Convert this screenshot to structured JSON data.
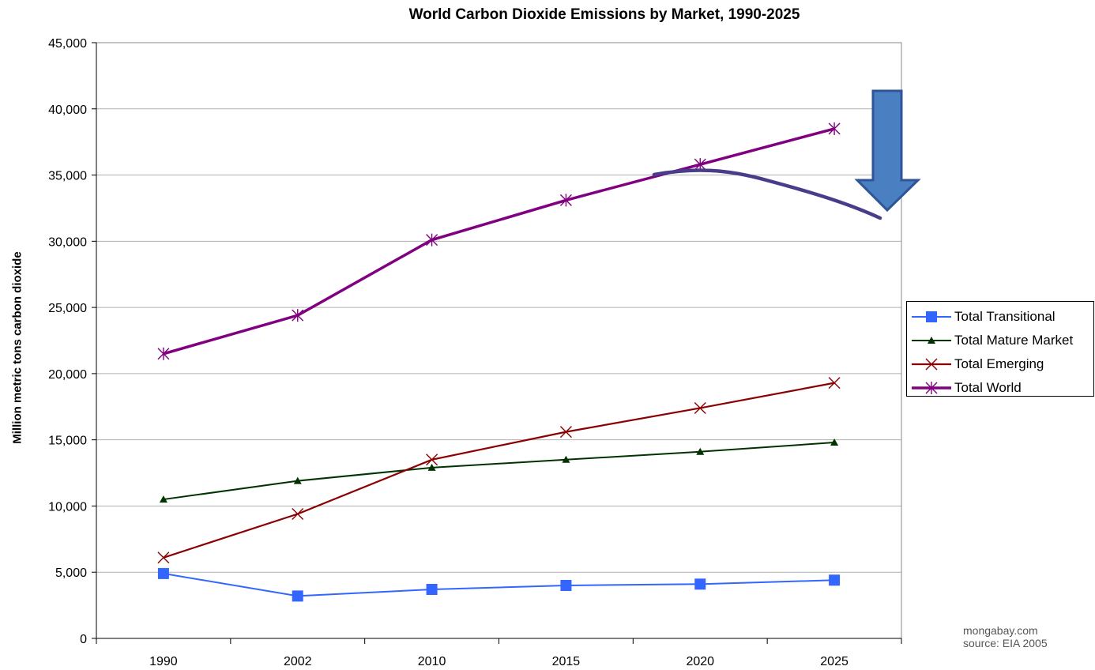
{
  "chart_data": {
    "type": "line",
    "title": "World Carbon Dioxide Emissions by Market, 1990-2025",
    "xlabel": "",
    "ylabel": "Million metric tons carbon dioxide",
    "categories": [
      "1990",
      "2002",
      "2010",
      "2015",
      "2020",
      "2025"
    ],
    "ylim": [
      0,
      45000
    ],
    "yticks": [
      "0",
      "5,000",
      "10,000",
      "15,000",
      "20,000",
      "25,000",
      "30,000",
      "35,000",
      "40,000",
      "45,000"
    ],
    "grid": true,
    "legend_position": "right",
    "series": [
      {
        "name": "Total Transitional",
        "values": [
          4900,
          3200,
          3700,
          4000,
          4100,
          4400
        ],
        "color": "#3366ff",
        "marker": "square"
      },
      {
        "name": "Total Mature Market",
        "values": [
          10500,
          11900,
          12900,
          13500,
          14100,
          14800
        ],
        "color": "#003300",
        "marker": "triangle"
      },
      {
        "name": "Total Emerging",
        "values": [
          6100,
          9400,
          13500,
          15600,
          17400,
          19300
        ],
        "color": "#8b0000",
        "marker": "x"
      },
      {
        "name": "Total World",
        "values": [
          21500,
          24400,
          30100,
          33100,
          35800,
          38500
        ],
        "color": "#800080",
        "marker": "asterisk"
      }
    ],
    "annotations": {
      "arrow": {
        "direction": "down",
        "color": "#4a7fc1",
        "icon": "down-arrow-icon"
      },
      "curve": {
        "color": "#483d8b",
        "icon": "downturn-curve"
      }
    }
  },
  "credit": {
    "line1": "mongabay.com",
    "line2": "source: EIA 2005"
  }
}
